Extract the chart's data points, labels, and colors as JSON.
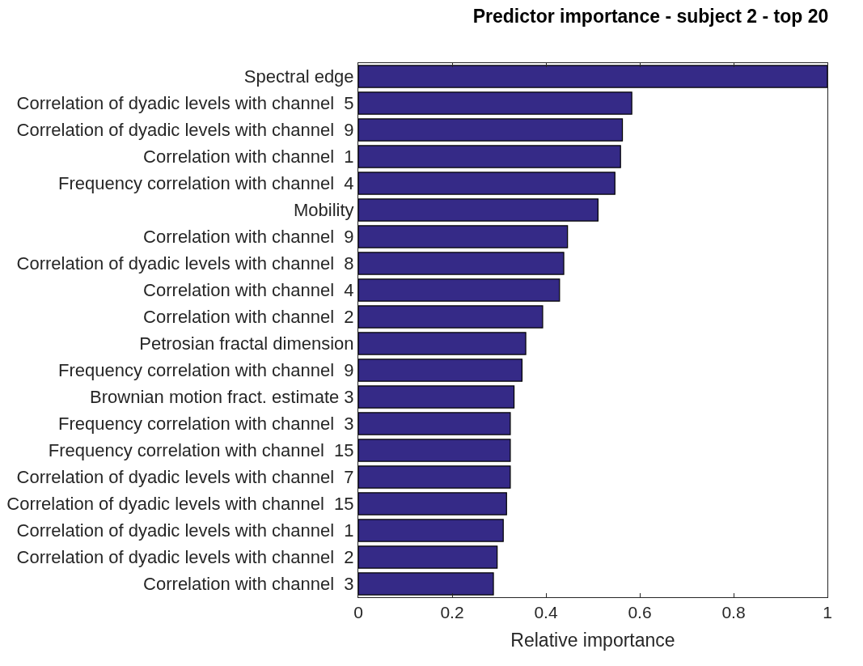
{
  "chart_data": {
    "type": "bar",
    "orientation": "horizontal",
    "title": "Predictor importance - subject 2 - top 20",
    "xlabel": "Relative importance",
    "categories": [
      "Spectral edge",
      "Correlation of dyadic levels with channel  5",
      "Correlation of dyadic levels with channel  9",
      "Correlation with channel  1",
      "Frequency correlation with channel  4",
      "Mobility",
      "Correlation with channel  9",
      "Correlation of dyadic levels with channel  8",
      "Correlation with channel  4",
      "Correlation with channel  2",
      "Petrosian fractal dimension",
      "Frequency correlation with channel  9",
      "Brownian motion fract. estimate 3",
      "Frequency correlation with channel  3",
      "Frequency correlation with channel  15",
      "Correlation of dyadic levels with channel  7",
      "Correlation of dyadic levels with channel  15",
      "Correlation of dyadic levels with channel  1",
      "Correlation of dyadic levels with channel  2",
      "Correlation with channel  3"
    ],
    "values": [
      1.0,
      0.583,
      0.563,
      0.559,
      0.547,
      0.511,
      0.446,
      0.438,
      0.429,
      0.393,
      0.357,
      0.349,
      0.332,
      0.324,
      0.324,
      0.324,
      0.316,
      0.309,
      0.296,
      0.288
    ],
    "color": "#352a87",
    "xlim": [
      0,
      1
    ],
    "xticks": [
      0,
      0.2,
      0.4,
      0.6,
      0.8,
      1
    ]
  }
}
